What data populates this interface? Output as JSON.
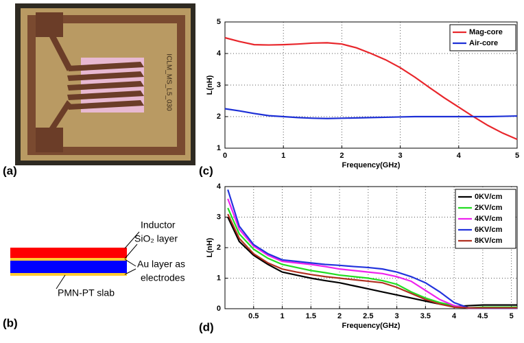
{
  "panel_labels": [
    "(a)",
    "(b)",
    "(c)",
    "(d)"
  ],
  "photo": {
    "chip_text": "ICLM_MS_L5_030"
  },
  "diagram": {
    "labels": [
      "Inductor",
      "SiO₂ layer",
      "Au layer as",
      "electrodes",
      "PMN-PT slab"
    ]
  },
  "chart_data": [
    {
      "type": "line",
      "xlabel": "Frequency(GHz)",
      "ylabel": "L(nH)",
      "x": [
        0,
        0.25,
        0.5,
        0.75,
        1,
        1.25,
        1.5,
        1.75,
        2,
        2.25,
        2.5,
        2.75,
        3,
        3.25,
        3.5,
        3.75,
        4,
        4.25,
        4.5,
        4.75,
        5
      ],
      "series": [
        {
          "name": "Mag-core",
          "color": "#e8262b",
          "values": [
            4.5,
            4.38,
            4.28,
            4.27,
            4.28,
            4.3,
            4.33,
            4.34,
            4.3,
            4.18,
            4.0,
            3.8,
            3.55,
            3.25,
            2.92,
            2.6,
            2.3,
            2.0,
            1.72,
            1.48,
            1.28
          ]
        },
        {
          "name": "Air-core",
          "color": "#1c2fd6",
          "values": [
            2.25,
            2.18,
            2.1,
            2.03,
            2.0,
            1.97,
            1.95,
            1.94,
            1.95,
            1.96,
            1.97,
            1.98,
            1.99,
            2.0,
            2.0,
            2.0,
            2.0,
            2.0,
            2.0,
            2.01,
            2.02
          ]
        }
      ],
      "xlim": [
        0,
        5
      ],
      "ylim": [
        1,
        5
      ],
      "xticks": [
        0,
        1,
        2,
        3,
        4,
        5
      ],
      "yticks": [
        1,
        2,
        3,
        4,
        5
      ],
      "grid": true,
      "legend": "upper right"
    },
    {
      "type": "line",
      "xlabel": "Frequency(GHz)",
      "ylabel": "L(nH)",
      "x": [
        0.05,
        0.25,
        0.5,
        0.75,
        1,
        1.25,
        1.5,
        1.75,
        2,
        2.25,
        2.5,
        2.75,
        3,
        3.25,
        3.5,
        3.75,
        4,
        4.25,
        4.5,
        4.75,
        5,
        5.1
      ],
      "series": [
        {
          "name": "0KV/cm",
          "color": "#000000",
          "values": [
            3.0,
            2.2,
            1.75,
            1.45,
            1.2,
            1.1,
            1.0,
            0.92,
            0.85,
            0.75,
            0.65,
            0.55,
            0.45,
            0.35,
            0.25,
            0.15,
            0.07,
            0.1,
            0.12,
            0.12,
            0.12,
            0.12
          ]
        },
        {
          "name": "2KV/cm",
          "color": "#22dd22",
          "values": [
            3.3,
            2.45,
            1.95,
            1.65,
            1.45,
            1.35,
            1.25,
            1.18,
            1.1,
            1.05,
            1.0,
            0.92,
            0.8,
            0.55,
            0.35,
            0.2,
            0.1,
            0.03,
            0.05,
            0.05,
            0.05,
            0.05
          ]
        },
        {
          "name": "4KV/cm",
          "color": "#ee22ee",
          "values": [
            3.6,
            2.6,
            2.05,
            1.75,
            1.55,
            1.5,
            1.45,
            1.38,
            1.3,
            1.25,
            1.2,
            1.15,
            1.05,
            0.9,
            0.6,
            0.3,
            0.1,
            0.02,
            0.02,
            0.02,
            0.02,
            0.02
          ]
        },
        {
          "name": "6KV/cm",
          "color": "#2233dd",
          "values": [
            3.9,
            2.7,
            2.1,
            1.8,
            1.6,
            1.55,
            1.5,
            1.45,
            1.42,
            1.38,
            1.35,
            1.3,
            1.2,
            1.05,
            0.85,
            0.55,
            0.2,
            0.03,
            0.02,
            0.02,
            0.02,
            0.02
          ]
        },
        {
          "name": "8KV/cm",
          "color": "#b03020",
          "values": [
            3.1,
            2.3,
            1.8,
            1.5,
            1.3,
            1.2,
            1.12,
            1.05,
            1.0,
            0.95,
            0.9,
            0.85,
            0.7,
            0.5,
            0.3,
            0.15,
            0.05,
            0.03,
            0.03,
            0.03,
            0.03,
            0.03
          ]
        }
      ],
      "xlim": [
        0,
        5.1
      ],
      "ylim": [
        0,
        4
      ],
      "xticks": [
        0.5,
        1,
        1.5,
        2,
        2.5,
        3,
        3.5,
        4,
        4.5,
        5
      ],
      "yticks": [
        0,
        1,
        2,
        3,
        4
      ],
      "grid": true,
      "legend": "upper right"
    }
  ]
}
